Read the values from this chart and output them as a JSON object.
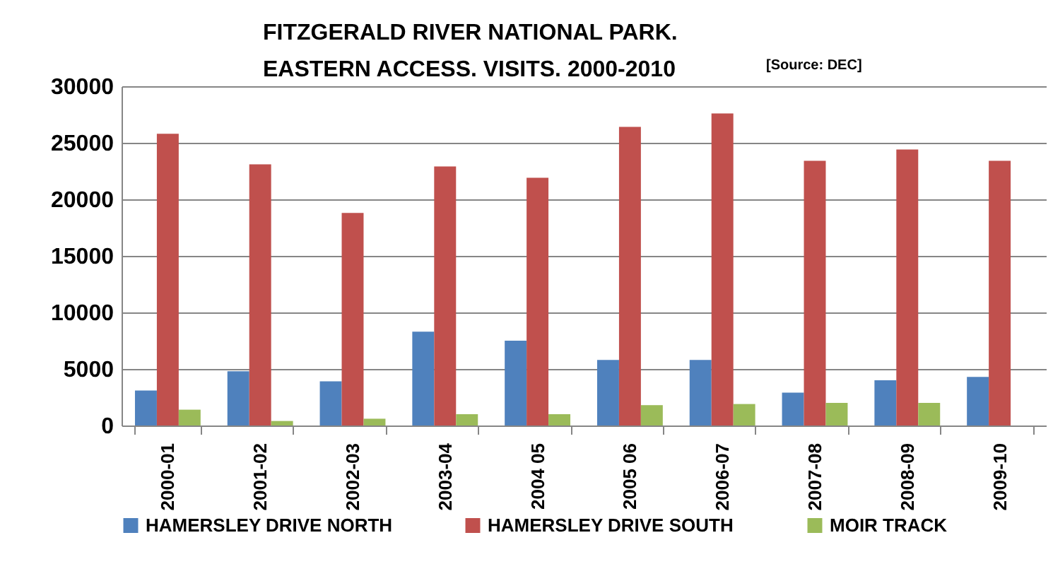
{
  "chart_data": {
    "type": "bar",
    "title": "FITZGERALD RIVER NATIONAL PARK.\nEASTERN ACCESS.  VISITS. 2000-2010",
    "annotations": [
      "[Source: DEC]"
    ],
    "categories": [
      "2000-01",
      "2001-02",
      "2002-03",
      "2003-04",
      "2004 05",
      "2005 06",
      "2006-07",
      "2007-08",
      "2008-09",
      "2009-10"
    ],
    "series": [
      {
        "name": "HAMERSLEY DRIVE NORTH",
        "color": "#4f81bd",
        "values": [
          3100,
          4800,
          3900,
          8300,
          7500,
          5800,
          5800,
          2900,
          4000,
          4300
        ]
      },
      {
        "name": "HAMERSLEY DRIVE SOUTH",
        "color": "#c0504d",
        "values": [
          25800,
          23100,
          18800,
          22900,
          21900,
          26400,
          27600,
          23400,
          24400,
          23400
        ]
      },
      {
        "name": "MOIR TRACK",
        "color": "#9bbb59",
        "values": [
          1400,
          400,
          600,
          1000,
          1000,
          1800,
          1900,
          2000,
          2000,
          null
        ]
      }
    ],
    "ylim": [
      0,
      30000
    ],
    "yticks": [
      0,
      5000,
      10000,
      15000,
      20000,
      25000,
      30000
    ],
    "grid": "y",
    "legend": "bottom"
  }
}
